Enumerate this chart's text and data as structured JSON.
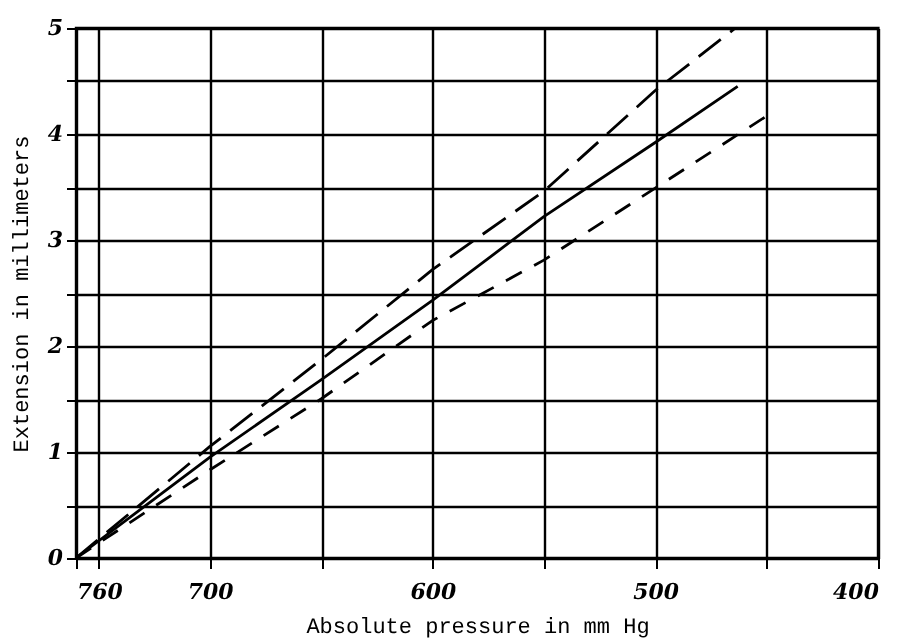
{
  "chart_data": {
    "type": "line",
    "xlabel": "Absolute pressure in mm Hg",
    "ylabel": "Extension in millimeters",
    "xlim": [
      760,
      400
    ],
    "ylim": [
      0,
      5
    ],
    "xticks": [
      760,
      {
        "value": 750,
        "label": null
      },
      700,
      {
        "value": 650,
        "label": null
      },
      600,
      {
        "value": 550,
        "label": null
      },
      500,
      {
        "value": 450,
        "label": null
      },
      400
    ],
    "yticks": [
      0,
      {
        "value": 0.5,
        "label": null
      },
      1,
      {
        "value": 1.5,
        "label": null
      },
      2,
      {
        "value": 2.5,
        "label": null
      },
      3,
      {
        "value": 3.5,
        "label": null
      },
      4,
      {
        "value": 4.5,
        "label": null
      },
      5
    ],
    "grid": true,
    "marker": "none",
    "series": [
      {
        "color": "#000000",
        "line_style": "dashed",
        "x": [
          760,
          700,
          650,
          600,
          550,
          500,
          464
        ],
        "values": [
          0,
          1.05,
          1.87,
          2.72,
          3.46,
          4.41,
          5
        ]
      },
      {
        "color": "#000000",
        "line_style": "solid",
        "x": [
          760,
          700,
          650,
          600,
          550,
          500,
          463
        ],
        "values": [
          0,
          0.95,
          1.68,
          2.43,
          3.22,
          3.92,
          4.45
        ]
      },
      {
        "color": "#000000",
        "line_style": "dotted",
        "x": [
          760,
          700,
          650,
          600,
          550,
          500,
          450
        ],
        "values": [
          0,
          0.83,
          1.5,
          2.24,
          2.81,
          3.49,
          4.17
        ]
      }
    ]
  }
}
